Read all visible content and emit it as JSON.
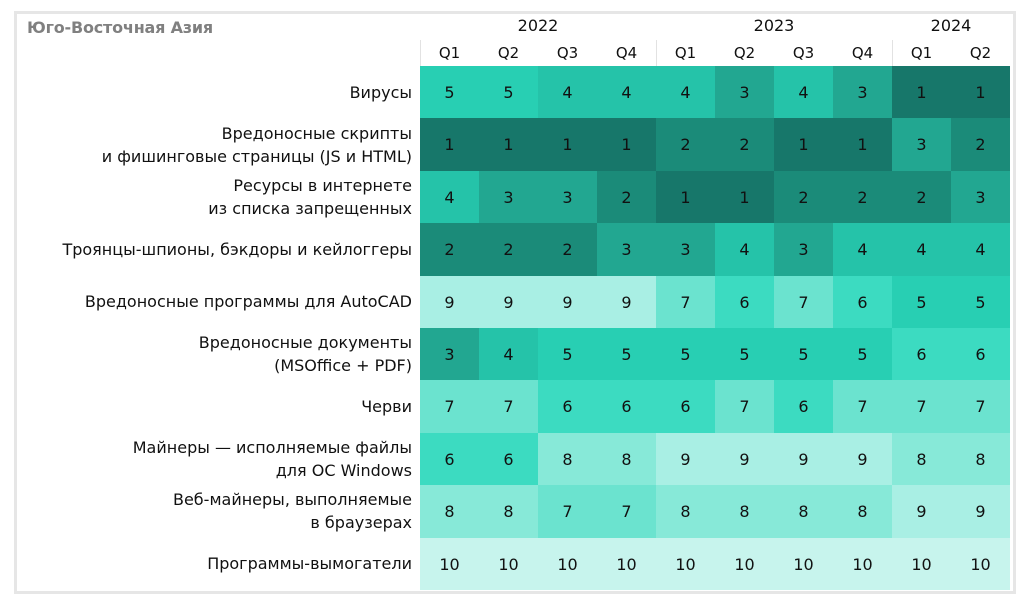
{
  "chart_data": {
    "type": "heatmap",
    "title": "Юго-Восточная Азия",
    "years": [
      {
        "label": "2022",
        "span": 4
      },
      {
        "label": "2023",
        "span": 4
      },
      {
        "label": "2024",
        "span": 2
      }
    ],
    "quarters": [
      "Q1",
      "Q2",
      "Q3",
      "Q4",
      "Q1",
      "Q2",
      "Q3",
      "Q4",
      "Q1",
      "Q2"
    ],
    "rows": [
      {
        "label": [
          "Вирусы"
        ],
        "values": [
          5,
          5,
          4,
          4,
          4,
          3,
          4,
          3,
          1,
          1
        ]
      },
      {
        "label": [
          "Вредоносные скрипты",
          "и фишинговые страницы (JS и HTML)"
        ],
        "values": [
          1,
          1,
          1,
          1,
          2,
          2,
          1,
          1,
          3,
          2
        ]
      },
      {
        "label": [
          "Ресурсы в интернете",
          "из списка запрещенных"
        ],
        "values": [
          4,
          3,
          3,
          2,
          1,
          1,
          2,
          2,
          2,
          3
        ]
      },
      {
        "label": [
          "Троянцы-шпионы, бэкдоры и кейлоггеры"
        ],
        "values": [
          2,
          2,
          2,
          3,
          3,
          4,
          3,
          4,
          4,
          4
        ]
      },
      {
        "label": [
          "Вредоносные программы для AutoCAD"
        ],
        "values": [
          9,
          9,
          9,
          9,
          7,
          6,
          7,
          6,
          5,
          5
        ]
      },
      {
        "label": [
          "Вредоносные документы",
          "(MSOffice + PDF)"
        ],
        "values": [
          3,
          4,
          5,
          5,
          5,
          5,
          5,
          5,
          6,
          6
        ]
      },
      {
        "label": [
          "Черви"
        ],
        "values": [
          7,
          7,
          6,
          6,
          6,
          7,
          6,
          7,
          7,
          7
        ]
      },
      {
        "label": [
          "Майнеры — исполняемые файлы",
          "для ОС Windows"
        ],
        "values": [
          6,
          6,
          8,
          8,
          9,
          9,
          9,
          9,
          8,
          8
        ]
      },
      {
        "label": [
          "Веб-майнеры, выполняемые",
          "в браузерах"
        ],
        "values": [
          8,
          8,
          7,
          7,
          8,
          8,
          8,
          8,
          9,
          9
        ]
      },
      {
        "label": [
          "Программы-вымогатели"
        ],
        "values": [
          10,
          10,
          10,
          10,
          10,
          10,
          10,
          10,
          10,
          10
        ]
      }
    ],
    "color_scale": {
      "1": "#17776a",
      "2": "#1b8b79",
      "3": "#22a791",
      "4": "#25c3a9",
      "5": "#28cfb3",
      "6": "#3cdbc1",
      "7": "#6be3cf",
      "8": "#87e9d8",
      "9": "#a9efe4",
      "10": "#c7f4ed"
    },
    "value_meaning": "rank"
  }
}
